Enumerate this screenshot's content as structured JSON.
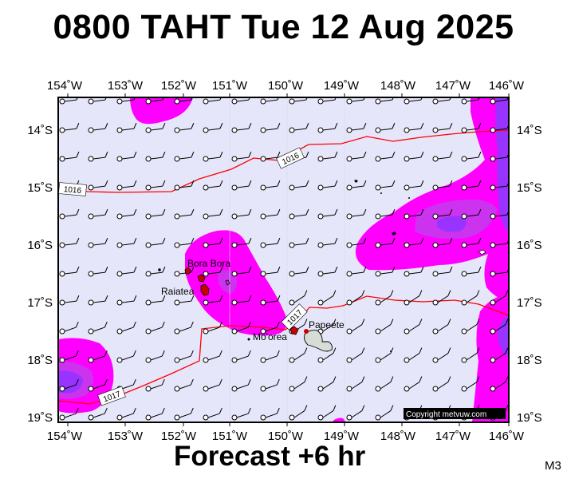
{
  "header": {
    "title": "0800 TAHT Tue 12 Aug 2025"
  },
  "footer": {
    "forecast": "Forecast +6 hr",
    "model": "M3"
  },
  "map": {
    "lon_ticks": [
      "154˚W",
      "153˚W",
      "152˚W",
      "151˚W",
      "150˚W",
      "149˚W",
      "148˚W",
      "147˚W",
      "146˚W"
    ],
    "lat_ticks": [
      "14˚S",
      "15˚S",
      "16˚S",
      "17˚S",
      "18˚S",
      "19˚S"
    ],
    "isobar_labels": [
      "1016",
      "1016",
      "1017",
      "1017"
    ],
    "places": [
      "Bora Bora",
      "Raiatea",
      "Mo'orea",
      "Papeete"
    ],
    "copyright": "Copyright metvuw.com",
    "colors": {
      "ocean": "#e6e6fa",
      "precip_light": "#ff00ff",
      "precip_medium": "#cc33ee",
      "precip_heavy": "#9933ff",
      "isobar": "#ff0000",
      "frame": "#000000"
    },
    "wind_barbs": "light easterly"
  }
}
